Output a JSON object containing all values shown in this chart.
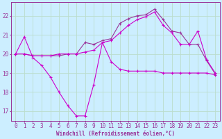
{
  "background_color": "#cceeff",
  "grid_color": "#aaddcc",
  "line_color1": "#cc00cc",
  "line_color2": "#993399",
  "xlabel": "Windchill (Refroidissement éolien,°C)",
  "xlim": [
    -0.5,
    23.5
  ],
  "ylim": [
    16.5,
    22.7
  ],
  "yticks": [
    17,
    18,
    19,
    20,
    21,
    22
  ],
  "xticks": [
    0,
    1,
    2,
    3,
    4,
    5,
    6,
    7,
    8,
    9,
    10,
    11,
    12,
    13,
    14,
    15,
    16,
    17,
    18,
    19,
    20,
    21,
    22,
    23
  ],
  "series1_x": [
    0,
    1,
    2,
    3,
    4,
    5,
    6,
    7,
    8,
    9,
    10,
    11,
    12,
    13,
    14,
    15,
    16,
    17,
    18,
    19,
    20,
    21,
    22,
    23
  ],
  "series1_y": [
    20.0,
    20.9,
    19.8,
    19.4,
    18.8,
    18.0,
    17.3,
    16.75,
    16.75,
    18.4,
    20.6,
    19.6,
    19.2,
    19.1,
    19.1,
    19.1,
    19.1,
    19.0,
    19.0,
    19.0,
    19.0,
    19.0,
    19.0,
    18.9
  ],
  "series2_x": [
    0,
    1,
    2,
    3,
    4,
    5,
    6,
    7,
    8,
    9,
    10,
    11,
    12,
    13,
    14,
    15,
    16,
    17,
    18,
    19,
    20,
    21,
    22,
    23
  ],
  "series2_y": [
    20.0,
    20.0,
    19.9,
    19.9,
    19.9,
    19.9,
    20.0,
    20.0,
    20.6,
    20.5,
    20.7,
    20.8,
    21.6,
    21.85,
    22.0,
    22.05,
    22.35,
    21.8,
    21.2,
    21.1,
    20.5,
    20.5,
    19.65,
    18.95
  ],
  "series3_x": [
    0,
    1,
    2,
    3,
    4,
    5,
    6,
    7,
    8,
    9,
    10,
    11,
    12,
    13,
    14,
    15,
    16,
    17,
    18,
    19,
    20,
    21,
    22,
    23
  ],
  "series3_y": [
    20.0,
    20.0,
    19.9,
    19.9,
    19.9,
    20.0,
    20.0,
    20.0,
    20.1,
    20.2,
    20.6,
    20.7,
    21.1,
    21.5,
    21.8,
    21.95,
    22.2,
    21.5,
    21.1,
    20.5,
    20.5,
    21.2,
    19.7,
    19.0
  ]
}
